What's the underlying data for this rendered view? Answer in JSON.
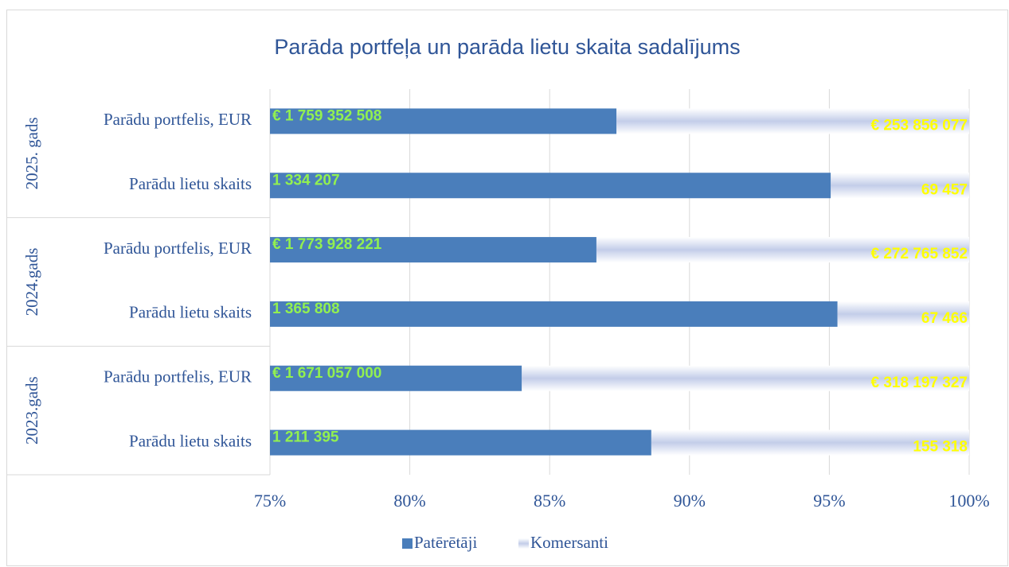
{
  "chart_data": {
    "type": "bar",
    "orientation": "horizontal",
    "stacking": "percent",
    "title": "Parāda portfeļa un parāda lietu skaita sadalījums",
    "groups": [
      "2025. gads",
      "2024.gads",
      "2023.gads"
    ],
    "categories": [
      "Parādu portfelis, EUR",
      "Parādu lietu skaits",
      "Parādu portfelis, EUR",
      "Parādu lietu skaits",
      "Parādu portfelis, EUR",
      "Parādu lietu skaits"
    ],
    "series": [
      {
        "name": "Patērētāji",
        "color": "#4a7ebb",
        "values": [
          1759352508,
          1334207,
          1773928221,
          1365808,
          1671057000,
          1211395
        ],
        "value_labels": [
          "€ 1 759 352 508",
          "1 334 207",
          "€ 1 773 928 221",
          "1 365 808",
          "€ 1 671 057 000",
          "1 211 395"
        ],
        "label_color": "#92f050"
      },
      {
        "name": "Komersanti",
        "color": "#c3cde9",
        "values": [
          253856077,
          69457,
          272765852,
          67466,
          318197327,
          155318
        ],
        "value_labels": [
          "€ 253 856 077",
          "69 457",
          "€ 272 765 852",
          "67 466",
          "€ 318 197 327",
          "155 318"
        ],
        "label_color": "#ffff00"
      }
    ],
    "xlim": [
      75,
      100
    ],
    "xticks": [
      {
        "value": 75,
        "label": "75%"
      },
      {
        "value": 80,
        "label": "80%"
      },
      {
        "value": 85,
        "label": "85%"
      },
      {
        "value": 90,
        "label": "90%"
      },
      {
        "value": 95,
        "label": "95%"
      },
      {
        "value": 100,
        "label": "100%"
      }
    ],
    "grid": true,
    "legend": "bottom"
  }
}
